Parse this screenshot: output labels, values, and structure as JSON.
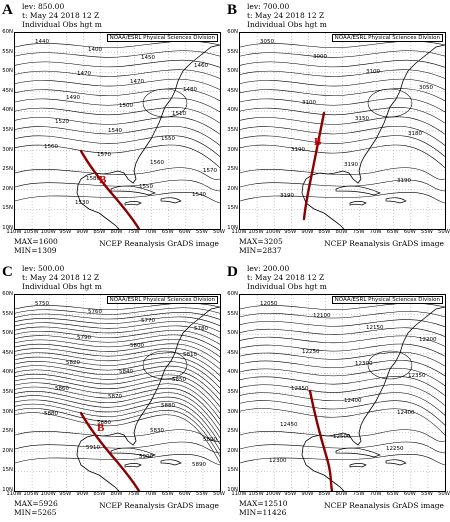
{
  "panels": [
    {
      "label": "A",
      "lev": "lev: 850.00",
      "time": "t: May 24 2018 12 Z",
      "var": "Individual Obs hgt m",
      "credit": "NOAA/ESRL Physical Sciences Division",
      "max": "MAX=1600",
      "min": "MIN=1309",
      "footer": "NCEP Reanalysis GrADS image",
      "marker": "B",
      "contours": [
        "1440",
        "1400",
        "1450",
        "1460",
        "1470",
        "1470",
        "1480",
        "1490",
        "1500",
        "1510",
        "1520",
        "1540",
        "1550",
        "1560",
        "1570",
        "1560",
        "1570",
        "1580",
        "1550",
        "1540",
        "1530"
      ]
    },
    {
      "label": "B",
      "lev": "lev: 700.00",
      "time": "t: May 24 2018 12 Z",
      "var": "Individual Obs hgt m",
      "credit": "NOAA/ESRL Physical Sciences Division",
      "max": "MAX=3205",
      "min": "MIN=2837",
      "footer": "NCEP Reanalysis GrADS image",
      "marker": "B",
      "contours": [
        "3050",
        "3000",
        "3100",
        "3050",
        "3100",
        "3150",
        "3180",
        "3190",
        "3190",
        "3190",
        "3190"
      ]
    },
    {
      "label": "C",
      "lev": "lev: 500.00",
      "time": "t: May 24 2018 12 Z",
      "var": "Individual Obs hgt m",
      "credit": "NOAA/ESRL Physical Sciences Division",
      "max": "MAX=5926",
      "min": "MIN=5265",
      "footer": "NCEP Reanalysis GrADS image",
      "marker": "B",
      "contours": [
        "5750",
        "5760",
        "5770",
        "5780",
        "5790",
        "5800",
        "5810",
        "5820",
        "5840",
        "5850",
        "5860",
        "5870",
        "5880",
        "5880",
        "5880",
        "5830",
        "5890",
        "5910",
        "5900",
        "5890"
      ]
    },
    {
      "label": "D",
      "lev": "lev: 200.00",
      "time": "t: May 24 2018 12 Z",
      "var": "Individual Obs hgt m",
      "credit": "NOAA/ESRL Physical Sciences Division",
      "max": "MAX=12510",
      "min": "MIN=11426",
      "footer": "NCEP Reanalysis GrADS image",
      "marker": "",
      "contours": [
        "12050",
        "12100",
        "12150",
        "12200",
        "12250",
        "12300",
        "12350",
        "12350",
        "12400",
        "12400",
        "12450",
        "12500",
        "12250",
        "12300"
      ]
    }
  ],
  "axes": {
    "lat_labels": [
      "60N",
      "55N",
      "50N",
      "45N",
      "40N",
      "35N",
      "30N",
      "25N",
      "20N",
      "15N",
      "10N"
    ],
    "lon_labels": [
      "110W",
      "105W",
      "100W",
      "95W",
      "90W",
      "85W",
      "80W",
      "75W",
      "70W",
      "65W",
      "60W",
      "55W",
      "50W"
    ]
  },
  "colors": {
    "track": "#8b0000",
    "marker": "#cc0000",
    "contour": "#000000",
    "coast": "#000000"
  }
}
